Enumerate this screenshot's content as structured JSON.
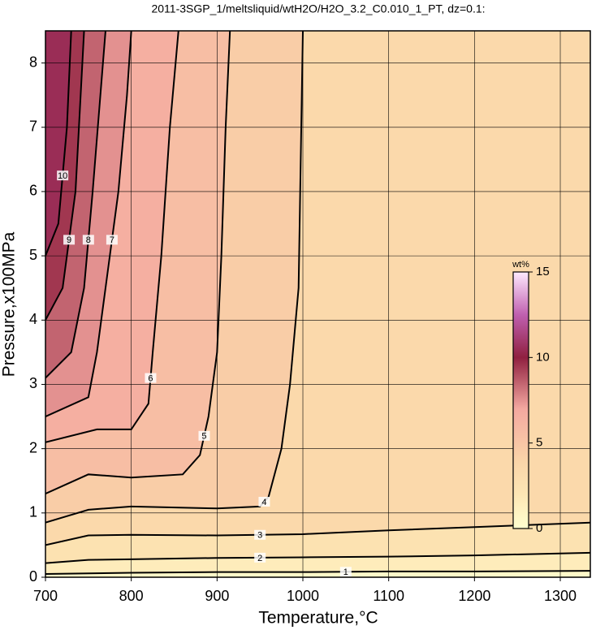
{
  "chart_data": {
    "type": "contour",
    "title": "2011-3SGP_1/meltsliquid/wtH2O/H2O_3.2_C0.010_1_PT, dz=0.1:",
    "xlabel": "Temperature,°C",
    "ylabel": "Pressure,x100MPa",
    "xlim": [
      700,
      1335
    ],
    "ylim": [
      0,
      8.5
    ],
    "xticks": [
      700,
      800,
      900,
      1000,
      1100,
      1200,
      1300
    ],
    "yticks": [
      0,
      1,
      2,
      3,
      4,
      5,
      6,
      7,
      8
    ],
    "grid": true,
    "series": [
      {
        "name": "1",
        "x": [
          700,
          800,
          900,
          1000,
          1100,
          1200,
          1335
        ],
        "values": [
          0.05,
          0.07,
          0.08,
          0.08,
          0.09,
          0.09,
          0.1
        ]
      },
      {
        "name": "2",
        "x": [
          700,
          750,
          800,
          900,
          1000,
          1100,
          1200,
          1335
        ],
        "values": [
          0.22,
          0.27,
          0.28,
          0.3,
          0.31,
          0.32,
          0.34,
          0.38
        ]
      },
      {
        "name": "3",
        "x": [
          700,
          750,
          800,
          900,
          1000,
          1100,
          1200,
          1335
        ],
        "values": [
          0.5,
          0.65,
          0.66,
          0.65,
          0.67,
          0.73,
          0.78,
          0.85
        ]
      },
      {
        "name": "4",
        "x": [
          700,
          750,
          800,
          900,
          950,
          960,
          975,
          985,
          995,
          1000
        ],
        "values": [
          0.85,
          1.05,
          1.1,
          1.07,
          1.1,
          1.25,
          2,
          3,
          4.5,
          8.5
        ]
      },
      {
        "name": "5",
        "x": [
          700,
          750,
          800,
          860,
          880,
          890,
          900,
          905,
          910,
          915
        ],
        "values": [
          1.3,
          1.6,
          1.55,
          1.6,
          1.9,
          2.5,
          3.5,
          5,
          7,
          8.5
        ]
      },
      {
        "name": "6",
        "x": [
          700,
          760,
          800,
          820,
          825,
          835,
          845,
          855
        ],
        "values": [
          2.1,
          2.3,
          2.3,
          2.7,
          3.5,
          5,
          7,
          8.5
        ]
      },
      {
        "name": "7",
        "x": [
          700,
          750,
          760,
          770,
          785,
          795,
          800
        ],
        "values": [
          2.5,
          2.8,
          3.5,
          4.5,
          6,
          7.5,
          8.5
        ]
      },
      {
        "name": "8",
        "x": [
          700,
          730,
          745,
          755,
          770
        ],
        "values": [
          3.1,
          3.5,
          4.5,
          6,
          8.5
        ]
      },
      {
        "name": "9",
        "x": [
          700,
          720,
          735,
          745
        ],
        "values": [
          4,
          4.5,
          6,
          8.5
        ]
      },
      {
        "name": "10",
        "x": [
          700,
          715,
          725,
          730
        ],
        "values": [
          5,
          5.5,
          7,
          8.5
        ]
      }
    ],
    "colorbar": {
      "label": "wt%",
      "lim": [
        0,
        15
      ],
      "ticks": [
        0,
        5,
        10,
        15
      ],
      "stops": [
        [
          0,
          "#ffffd0"
        ],
        [
          2,
          "#fde6b4"
        ],
        [
          4,
          "#fad4a8"
        ],
        [
          7,
          "#f4a8a0"
        ],
        [
          10,
          "#902040"
        ],
        [
          12.5,
          "#c060b0"
        ],
        [
          15,
          "#ffeaff"
        ]
      ]
    }
  }
}
